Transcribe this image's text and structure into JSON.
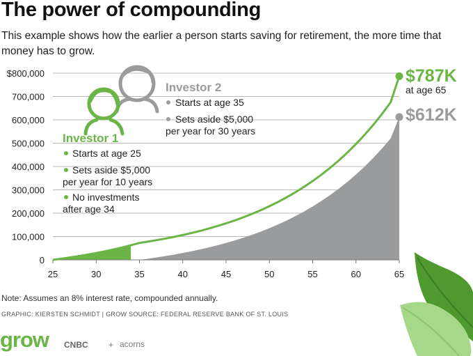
{
  "header": {
    "title": "The power of compounding",
    "subtitle": "This example shows how the earlier a person starts saving for retirement, the more time that money has to grow."
  },
  "investor1": {
    "name": "Investor 1",
    "bullets": [
      "Starts at age 25",
      "Sets aside $5,000 per year for 10 years",
      "No investments after age 34"
    ]
  },
  "investor2": {
    "name": "Investor 2",
    "bullets": [
      "Starts at age 35",
      "Sets aside $5,000 per year for 30 years"
    ]
  },
  "end_labels": {
    "investor1_value": "$787K",
    "investor1_caption": "at age 65",
    "investor2_value": "$612K"
  },
  "footer": {
    "note": "Note: Assumes an 8% interest rate, compounded annually.",
    "credits": "GRAPHIC: KIERSTEN SCHMIDT | GROW   SOURCE: FEDERAL RESERVE BANK OF ST. LOUIS",
    "logo_grow": "grow",
    "logo_cnbc": "CNBC",
    "logo_plus": "+",
    "logo_acorns": "acorns"
  },
  "colors": {
    "investor1": "#6ab546",
    "investor2": "#999b9c",
    "leaf_dark": "#4e9a2f",
    "leaf_light": "#a6d88a"
  },
  "chart_data": {
    "type": "area",
    "xlabel": "",
    "ylabel": "",
    "xlim": [
      25,
      65
    ],
    "ylim": [
      0,
      800000
    ],
    "x_ticks": [
      25,
      30,
      35,
      40,
      45,
      50,
      55,
      60,
      65
    ],
    "y_ticks": [
      {
        "value": 0,
        "label": "0"
      },
      {
        "value": 100000,
        "label": "100,000"
      },
      {
        "value": 200000,
        "label": "200,000"
      },
      {
        "value": 300000,
        "label": "300,000"
      },
      {
        "value": 400000,
        "label": "400,000"
      },
      {
        "value": 500000,
        "label": "500,000"
      },
      {
        "value": 600000,
        "label": "600,000"
      },
      {
        "value": 700000,
        "label": "700,000"
      },
      {
        "value": 800000,
        "label": "$800,000"
      }
    ],
    "grid": true,
    "series": [
      {
        "name": "Investor 1",
        "x": [
          25,
          26,
          27,
          28,
          29,
          30,
          31,
          32,
          33,
          34,
          35,
          36,
          37,
          38,
          39,
          40,
          41,
          42,
          43,
          44,
          45,
          46,
          47,
          48,
          49,
          50,
          51,
          52,
          53,
          54,
          55,
          56,
          57,
          58,
          59,
          60,
          61,
          62,
          63,
          64,
          65
        ],
        "values": [
          0,
          5000,
          10400,
          16232,
          22531,
          29333,
          36680,
          44614,
          53183,
          62438,
          72433,
          78228,
          84486,
          91245,
          98545,
          106429,
          114943,
          124138,
          134069,
          144795,
          156379,
          168889,
          182400,
          196992,
          212752,
          229772,
          248153,
          268006,
          289446,
          312602,
          337610,
          364619,
          393788,
          425291,
          459314,
          496059,
          535744,
          578604,
          624892,
          674883,
          787000
        ]
      },
      {
        "name": "Investor 2",
        "x": [
          35,
          36,
          37,
          38,
          39,
          40,
          41,
          42,
          43,
          44,
          45,
          46,
          47,
          48,
          49,
          50,
          51,
          52,
          53,
          54,
          55,
          56,
          57,
          58,
          59,
          60,
          61,
          62,
          63,
          64,
          65
        ],
        "values": [
          0,
          5000,
          10400,
          16232,
          22531,
          29333,
          36680,
          44614,
          53183,
          62438,
          72433,
          83227,
          94886,
          107477,
          121075,
          135761,
          151621,
          168751,
          187251,
          207231,
          228810,
          252115,
          277284,
          304467,
          333824,
          365530,
          399772,
          436754,
          476694,
          519830,
          612000
        ]
      }
    ]
  }
}
